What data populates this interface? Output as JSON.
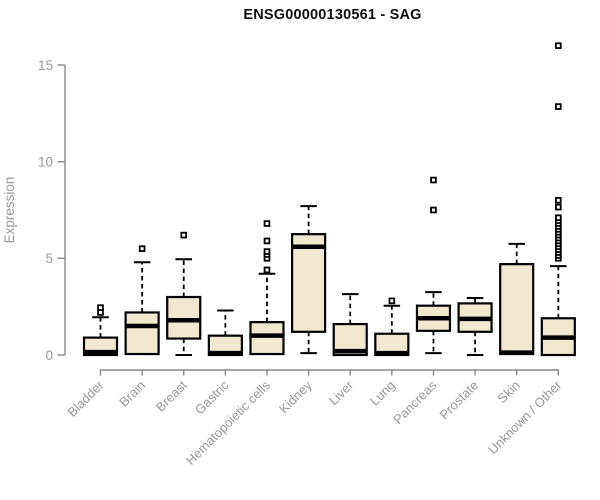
{
  "chart_data": {
    "type": "boxplot",
    "title": "ENSG00000130561 - SAG",
    "ylabel": "Expression",
    "xlabel": "",
    "ylim": [
      0,
      15
    ],
    "yticks": [
      0,
      5,
      10,
      15
    ],
    "grid": false,
    "legend": "none",
    "colors": {
      "box_fill": "#f0e9d0",
      "box_stroke": "#000000",
      "axis_line": "#8a8a8a",
      "axis_text": "#999999",
      "title_text": "#101010"
    },
    "categories": [
      "Bladder",
      "Brain",
      "Breast",
      "Gastric",
      "Hematopoietic cells",
      "Kidney",
      "Liver",
      "Lung",
      "Pancreas",
      "Prostate",
      "Skin",
      "Unknown / Other"
    ],
    "series": [
      {
        "category": "Bladder",
        "whisker_low": 0,
        "q1": 0,
        "median": 0.15,
        "q3": 0.9,
        "whisker_high": 1.95,
        "outliers": [
          2.2,
          2.45
        ]
      },
      {
        "category": "Brain",
        "whisker_low": 0.05,
        "q1": 0.05,
        "median": 1.5,
        "q3": 2.2,
        "whisker_high": 4.8,
        "outliers": [
          5.5
        ]
      },
      {
        "category": "Breast",
        "whisker_low": 0,
        "q1": 0.85,
        "median": 1.8,
        "q3": 3.0,
        "whisker_high": 4.95,
        "outliers": [
          6.2
        ]
      },
      {
        "category": "Gastric",
        "whisker_low": 0,
        "q1": 0,
        "median": 0.1,
        "q3": 1.0,
        "whisker_high": 2.3,
        "outliers": []
      },
      {
        "category": "Hematopoietic cells",
        "whisker_low": 0.05,
        "q1": 0.05,
        "median": 1.0,
        "q3": 1.7,
        "whisker_high": 4.2,
        "outliers": [
          4.4,
          5.0,
          5.2,
          5.35,
          5.9,
          6.8
        ]
      },
      {
        "category": "Kidney",
        "whisker_low": 0.1,
        "q1": 1.2,
        "median": 5.6,
        "q3": 6.25,
        "whisker_high": 7.7,
        "outliers": []
      },
      {
        "category": "Liver",
        "whisker_low": 0,
        "q1": 0,
        "median": 0.2,
        "q3": 1.6,
        "whisker_high": 3.15,
        "outliers": []
      },
      {
        "category": "Lung",
        "whisker_low": 0,
        "q1": 0,
        "median": 0.1,
        "q3": 1.1,
        "whisker_high": 2.55,
        "outliers": [
          2.8
        ]
      },
      {
        "category": "Pancreas",
        "whisker_low": 0.1,
        "q1": 1.25,
        "median": 1.9,
        "q3": 2.55,
        "whisker_high": 3.25,
        "outliers": [
          7.5,
          9.05
        ]
      },
      {
        "category": "Prostate",
        "whisker_low": 0,
        "q1": 1.2,
        "median": 1.87,
        "q3": 2.67,
        "whisker_high": 2.95,
        "outliers": []
      },
      {
        "category": "Skin",
        "whisker_low": 0.05,
        "q1": 0.05,
        "median": 0.12,
        "q3": 4.7,
        "whisker_high": 5.75,
        "outliers": []
      },
      {
        "category": "Unknown / Other",
        "whisker_low": 0,
        "q1": 0,
        "median": 0.9,
        "q3": 1.9,
        "whisker_high": 4.6,
        "outliers": [
          5.0,
          5.15,
          5.3,
          5.45,
          5.6,
          5.75,
          5.9,
          6.05,
          6.2,
          6.35,
          6.5,
          6.65,
          6.8,
          6.95,
          7.1,
          7.65,
          8.0,
          12.85,
          16.0
        ]
      }
    ]
  }
}
